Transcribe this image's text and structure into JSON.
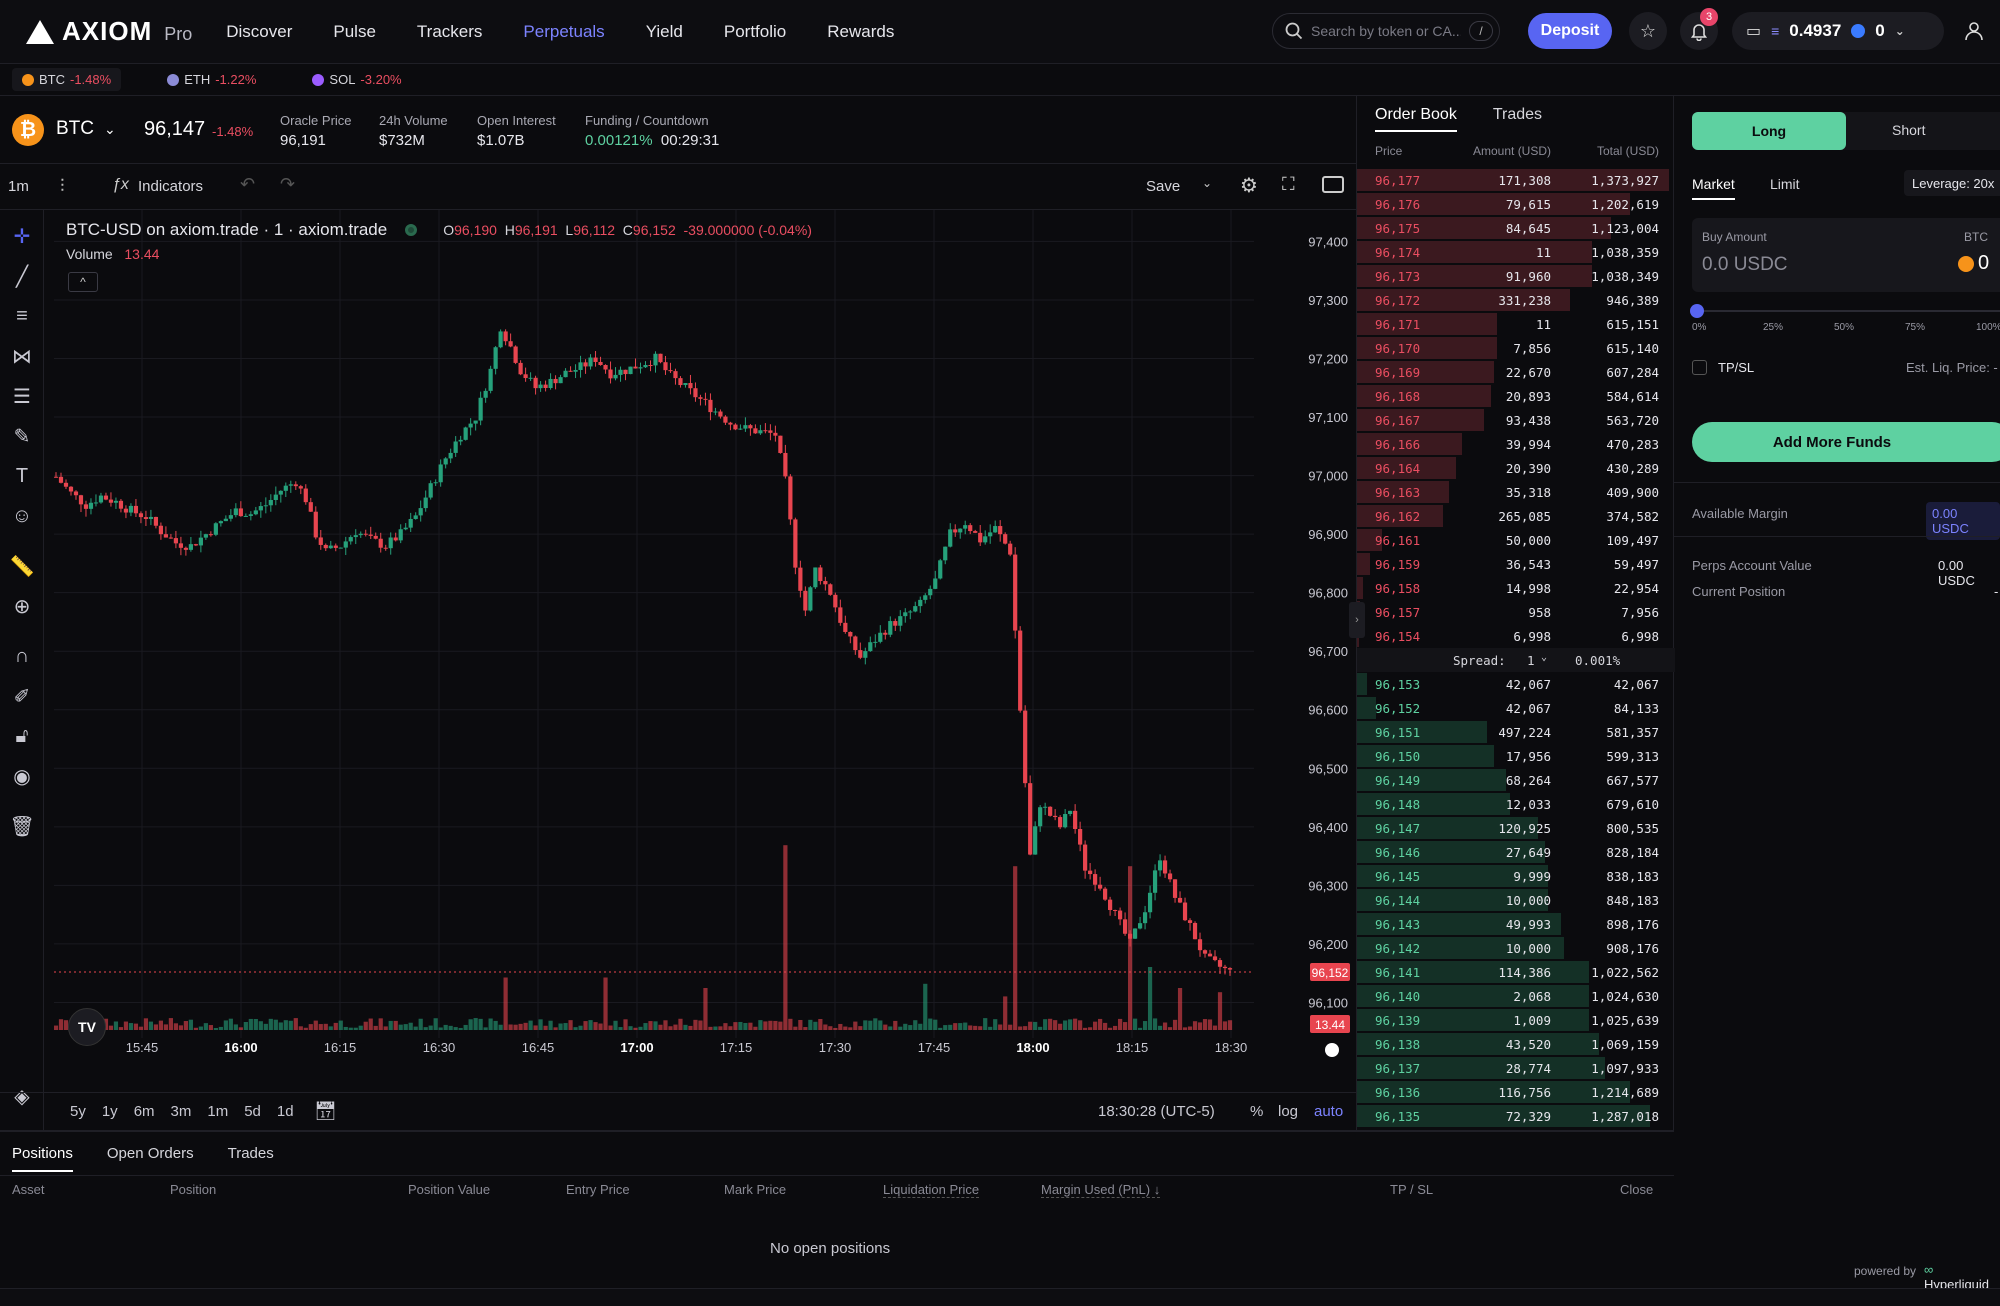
{
  "nav": {
    "brand": "AXIOM",
    "brand_sub": "Pro",
    "items": [
      "Discover",
      "Pulse",
      "Trackers",
      "Perpetuals",
      "Yield",
      "Portfolio",
      "Rewards"
    ],
    "active": "Perpetuals",
    "search_placeholder": "Search by token or CA...",
    "search_shortcut": "/",
    "deposit": "Deposit",
    "notif_count": "3",
    "wallet_balance": "0.4937",
    "wallet_secondary": "0"
  },
  "tickers": [
    {
      "symbol": "BTC",
      "change": "-1.48%",
      "color": "#f7931a"
    },
    {
      "symbol": "ETH",
      "change": "-1.22%",
      "color": "#8b8bd6"
    },
    {
      "symbol": "SOL",
      "change": "-3.20%",
      "color": "#9b5cff"
    }
  ],
  "market": {
    "symbol": "BTC",
    "price": "96,147",
    "change": "-1.48%",
    "stats": [
      {
        "label": "Oracle Price",
        "value": "96,191"
      },
      {
        "label": "24h Volume",
        "value": "$732M"
      },
      {
        "label": "Open Interest",
        "value": "$1.07B"
      }
    ],
    "funding_label": "Funding / Countdown",
    "funding_rate": "0.00121%",
    "countdown": "00:29:31"
  },
  "toolbar": {
    "interval": "1m",
    "indicators": "Indicators",
    "save": "Save"
  },
  "chart_data": {
    "type": "candlestick",
    "title": "BTC-USD on axiom.trade · 1 · axiom.trade",
    "ohlc": {
      "o": "96,190",
      "h": "96,191",
      "l": "96,112",
      "c": "96,152",
      "change": "-39.000000 (-0.04%)"
    },
    "volume_label": "Volume",
    "volume_value": "13.44",
    "last_price_label": "96,152",
    "volume_badge": "13.44",
    "y_ticks": [
      "97,400",
      "97,300",
      "97,200",
      "97,100",
      "97,000",
      "96,900",
      "96,800",
      "96,700",
      "96,600",
      "96,500",
      "96,400",
      "96,300",
      "96,200",
      "96,100"
    ],
    "y_tick_values": [
      97400,
      97300,
      97200,
      97100,
      97000,
      96900,
      96800,
      96700,
      96600,
      96500,
      96400,
      96300,
      96200,
      96100
    ],
    "ylim": [
      96070,
      97440
    ],
    "x_ticks": [
      "15:45",
      "16:00",
      "16:15",
      "16:30",
      "16:45",
      "17:00",
      "17:15",
      "17:30",
      "17:45",
      "18:00",
      "18:15",
      "18:30"
    ],
    "bold_x_ticks": [
      "16:00",
      "17:00",
      "18:00"
    ],
    "last_price": 96152,
    "close_path": [
      [
        0,
        96998
      ],
      [
        3,
        96970
      ],
      [
        6,
        96950
      ],
      [
        9,
        96965
      ],
      [
        12,
        96955
      ],
      [
        15,
        96940
      ],
      [
        18,
        96930
      ],
      [
        21,
        96905
      ],
      [
        24,
        96885
      ],
      [
        27,
        96880
      ],
      [
        30,
        96900
      ],
      [
        33,
        96920
      ],
      [
        36,
        96940
      ],
      [
        39,
        96935
      ],
      [
        42,
        96950
      ],
      [
        45,
        96975
      ],
      [
        48,
        96990
      ],
      [
        50,
        96960
      ],
      [
        52,
        96900
      ],
      [
        54,
        96870
      ],
      [
        57,
        96880
      ],
      [
        60,
        96905
      ],
      [
        63,
        96890
      ],
      [
        66,
        96880
      ],
      [
        69,
        96900
      ],
      [
        72,
        96930
      ],
      [
        75,
        96980
      ],
      [
        78,
        97030
      ],
      [
        81,
        97070
      ],
      [
        84,
        97100
      ],
      [
        87,
        97180
      ],
      [
        89,
        97255
      ],
      [
        91,
        97220
      ],
      [
        93,
        97180
      ],
      [
        96,
        97150
      ],
      [
        99,
        97160
      ],
      [
        102,
        97175
      ],
      [
        105,
        97185
      ],
      [
        108,
        97200
      ],
      [
        111,
        97175
      ],
      [
        114,
        97180
      ],
      [
        117,
        97190
      ],
      [
        120,
        97200
      ],
      [
        123,
        97170
      ],
      [
        126,
        97150
      ],
      [
        129,
        97130
      ],
      [
        132,
        97110
      ],
      [
        135,
        97090
      ],
      [
        138,
        97080
      ],
      [
        141,
        97075
      ],
      [
        144,
        97070
      ],
      [
        146,
        96990
      ],
      [
        148,
        96850
      ],
      [
        150,
        96770
      ],
      [
        152,
        96840
      ],
      [
        155,
        96800
      ],
      [
        158,
        96730
      ],
      [
        161,
        96690
      ],
      [
        164,
        96720
      ],
      [
        167,
        96745
      ],
      [
        170,
        96760
      ],
      [
        173,
        96780
      ],
      [
        176,
        96820
      ],
      [
        179,
        96900
      ],
      [
        182,
        96920
      ],
      [
        185,
        96890
      ],
      [
        188,
        96910
      ],
      [
        191,
        96870
      ],
      [
        193,
        96600
      ],
      [
        195,
        96350
      ],
      [
        197,
        96440
      ],
      [
        199,
        96420
      ],
      [
        201,
        96400
      ],
      [
        203,
        96430
      ],
      [
        206,
        96330
      ],
      [
        209,
        96300
      ],
      [
        212,
        96250
      ],
      [
        215,
        96200
      ],
      [
        218,
        96260
      ],
      [
        221,
        96350
      ],
      [
        224,
        96280
      ],
      [
        227,
        96230
      ],
      [
        230,
        96175
      ],
      [
        232,
        96165
      ],
      [
        235,
        96152
      ]
    ],
    "volume_spikes": [
      [
        90,
        0.25
      ],
      [
        110,
        0.25
      ],
      [
        130,
        0.2
      ],
      [
        146,
        0.88
      ],
      [
        174,
        0.22
      ],
      [
        190,
        0.16
      ],
      [
        192,
        0.78
      ],
      [
        215,
        0.78
      ],
      [
        219,
        0.3
      ],
      [
        225,
        0.2
      ],
      [
        233,
        0.18
      ]
    ]
  },
  "range": {
    "items": [
      "5y",
      "1y",
      "6m",
      "3m",
      "1m",
      "5d",
      "1d"
    ],
    "time": "18:30:28 (UTC-5)",
    "pct": "%",
    "log": "log",
    "auto": "auto"
  },
  "positions": {
    "tabs": [
      "Positions",
      "Open Orders",
      "Trades"
    ],
    "columns": [
      "Asset",
      "Position",
      "Position Value",
      "Entry Price",
      "Mark Price",
      "Liquidation Price",
      "Margin Used (PnL) ↓",
      "TP / SL",
      "Close"
    ],
    "empty": "No open positions"
  },
  "orderbook": {
    "tabs": [
      "Order Book",
      "Trades"
    ],
    "columns": [
      "Price",
      "Amount (USD)",
      "Total (USD)"
    ],
    "asks": [
      [
        "96,177",
        "171,308",
        "1,373,927",
        0.98
      ],
      [
        "96,176",
        "79,615",
        "1,202,619",
        0.86
      ],
      [
        "96,175",
        "84,645",
        "1,123,004",
        0.8
      ],
      [
        "96,174",
        "11",
        "1,038,359",
        0.74
      ],
      [
        "96,173",
        "91,960",
        "1,038,349",
        0.74
      ],
      [
        "96,172",
        "331,238",
        "946,389",
        0.67
      ],
      [
        "96,171",
        "11",
        "615,151",
        0.44
      ],
      [
        "96,170",
        "7,856",
        "615,140",
        0.44
      ],
      [
        "96,169",
        "22,670",
        "607,284",
        0.43
      ],
      [
        "96,168",
        "20,893",
        "584,614",
        0.42
      ],
      [
        "96,167",
        "93,438",
        "563,720",
        0.4
      ],
      [
        "96,166",
        "39,994",
        "470,283",
        0.33
      ],
      [
        "96,164",
        "20,390",
        "430,289",
        0.31
      ],
      [
        "96,163",
        "35,318",
        "409,900",
        0.29
      ],
      [
        "96,162",
        "265,085",
        "374,582",
        0.27
      ],
      [
        "96,161",
        "50,000",
        "109,497",
        0.08
      ],
      [
        "96,159",
        "36,543",
        "59,497",
        0.04
      ],
      [
        "96,158",
        "14,998",
        "22,954",
        0.02
      ],
      [
        "96,157",
        "958",
        "7,956",
        0.01
      ],
      [
        "96,154",
        "6,998",
        "6,998",
        0.005
      ]
    ],
    "spread_label": "Spread:",
    "spread_step": "1",
    "spread_value": "0.001%",
    "bids": [
      [
        "96,153",
        "42,067",
        "42,067",
        0.03
      ],
      [
        "96,152",
        "42,067",
        "84,133",
        0.06
      ],
      [
        "96,151",
        "497,224",
        "581,357",
        0.41
      ],
      [
        "96,150",
        "17,956",
        "599,313",
        0.43
      ],
      [
        "96,149",
        "68,264",
        "667,577",
        0.47
      ],
      [
        "96,148",
        "12,033",
        "679,610",
        0.48
      ],
      [
        "96,147",
        "120,925",
        "800,535",
        0.57
      ],
      [
        "96,146",
        "27,649",
        "828,184",
        0.59
      ],
      [
        "96,145",
        "9,999",
        "838,183",
        0.6
      ],
      [
        "96,144",
        "10,000",
        "848,183",
        0.6
      ],
      [
        "96,143",
        "49,993",
        "898,176",
        0.64
      ],
      [
        "96,142",
        "10,000",
        "908,176",
        0.65
      ],
      [
        "96,141",
        "114,386",
        "1,022,562",
        0.73
      ],
      [
        "96,140",
        "2,068",
        "1,024,630",
        0.73
      ],
      [
        "96,139",
        "1,009",
        "1,025,639",
        0.73
      ],
      [
        "96,138",
        "43,520",
        "1,069,159",
        0.76
      ],
      [
        "96,137",
        "28,774",
        "1,097,933",
        0.78
      ],
      [
        "96,136",
        "116,756",
        "1,214,689",
        0.86
      ],
      [
        "96,135",
        "72,329",
        "1,287,018",
        0.92
      ]
    ]
  },
  "trade": {
    "long": "Long",
    "short": "Short",
    "order_types": [
      "Market",
      "Limit"
    ],
    "leverage": "Leverage: 20x",
    "buy_amount_label": "Buy Amount",
    "buy_amount_asset": "BTC",
    "buy_amount_value": "0.0 USDC",
    "buy_amount_right": "0",
    "slider_marks": [
      "0%",
      "25%",
      "50%",
      "75%",
      "100%"
    ],
    "tpsl": "TP/SL",
    "liq_price": "Est. Liq. Price: -",
    "add_funds": "Add More Funds",
    "available_margin_label": "Available Margin",
    "available_margin": "0.00 USDC",
    "account_value_label": "Perps Account Value",
    "account_value": "0.00 USDC",
    "current_position_label": "Current Position",
    "current_position": "-",
    "powered_by": "powered by",
    "powered_name": "Hyperliquid"
  }
}
